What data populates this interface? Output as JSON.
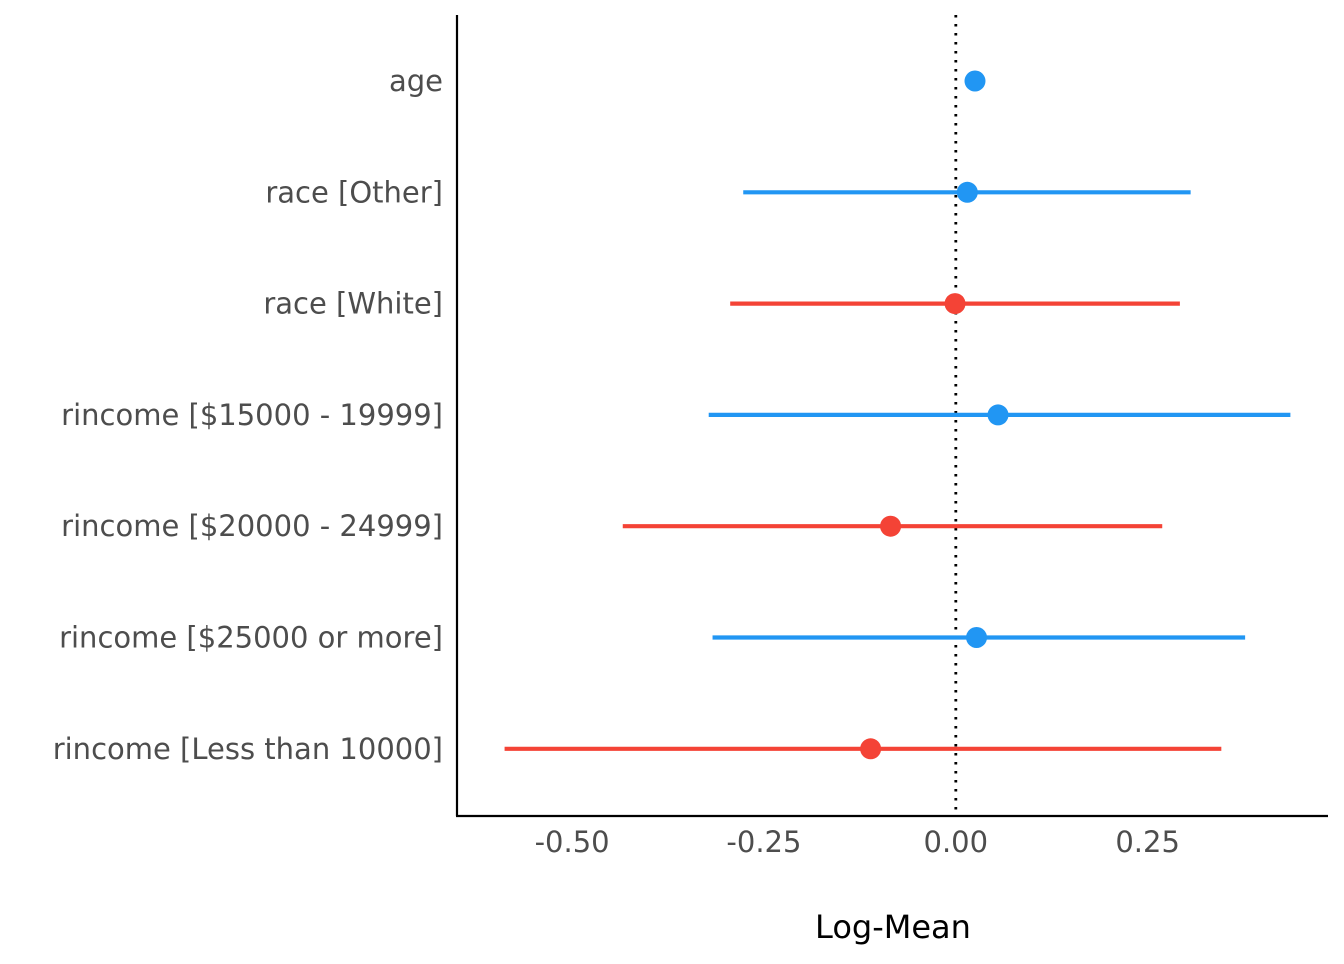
{
  "chart_data": {
    "type": "forest",
    "xlabel": "Log-Mean",
    "ylabel": "",
    "xlim": [
      -0.65,
      0.485
    ],
    "reference_line": {
      "x": 0,
      "style": "dotted"
    },
    "x_ticks": [
      -0.5,
      -0.25,
      0.0,
      0.25
    ],
    "x_tick_labels": [
      "-0.50",
      "-0.25",
      "0.00",
      "0.25"
    ],
    "grid": false,
    "legend": "none",
    "colors": {
      "positive": "#2196F3",
      "negative": "#F44336",
      "axis": "#000000",
      "tick_text": "#4d4d4d"
    },
    "terms": [
      {
        "label": "age",
        "estimate": 0.025,
        "ci_low": 0.025,
        "ci_high": 0.025
      },
      {
        "label": "race [Other]",
        "estimate": 0.015,
        "ci_low": -0.277,
        "ci_high": 0.306
      },
      {
        "label": "race [White]",
        "estimate": -0.001,
        "ci_low": -0.294,
        "ci_high": 0.292
      },
      {
        "label": "rincome [$15000 - 19999]",
        "estimate": 0.055,
        "ci_low": -0.322,
        "ci_high": 0.436
      },
      {
        "label": "rincome [$20000 - 24999]",
        "estimate": -0.085,
        "ci_low": -0.434,
        "ci_high": 0.269
      },
      {
        "label": "rincome [$25000 or more]",
        "estimate": 0.027,
        "ci_low": -0.317,
        "ci_high": 0.377
      },
      {
        "label": "rincome [Less than 10000]",
        "estimate": -0.111,
        "ci_low": -0.588,
        "ci_high": 0.346
      }
    ]
  }
}
